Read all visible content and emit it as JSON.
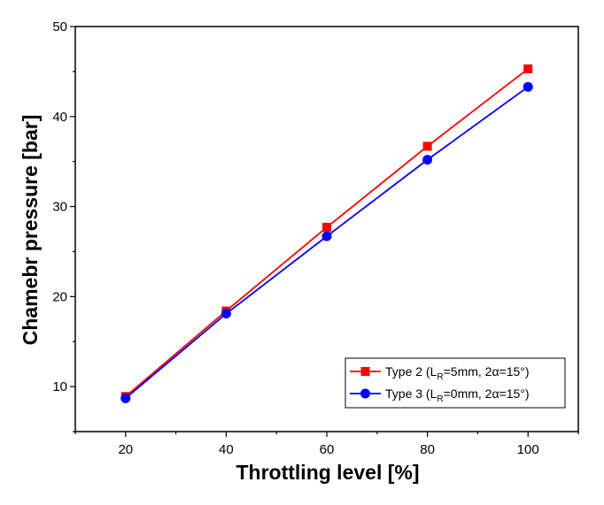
{
  "chart_data": {
    "type": "line",
    "xlabel": "Throttling level [%]",
    "ylabel": "Chamebr pressure [bar]",
    "xlim": [
      10,
      110
    ],
    "ylim": [
      5,
      50
    ],
    "x_ticks": [
      20,
      40,
      60,
      80,
      100
    ],
    "y_ticks": [
      10,
      20,
      30,
      40,
      50
    ],
    "grid": false,
    "legend_position": "bottom-right",
    "series": [
      {
        "name_main": "Type 2 (L",
        "name_sub": "R",
        "name_rest": "=5mm, 2α=15°)",
        "color": "#ff0000",
        "marker": "square",
        "x": [
          20,
          40,
          60,
          80,
          100
        ],
        "y": [
          8.9,
          18.4,
          27.7,
          36.7,
          45.3
        ]
      },
      {
        "name_main": "Type 3 (L",
        "name_sub": "R",
        "name_rest": "=0mm, 2α=15°)",
        "color": "#0000ff",
        "marker": "circle",
        "x": [
          20,
          40,
          60,
          80,
          100
        ],
        "y": [
          8.7,
          18.1,
          26.7,
          35.2,
          43.3
        ]
      }
    ]
  }
}
